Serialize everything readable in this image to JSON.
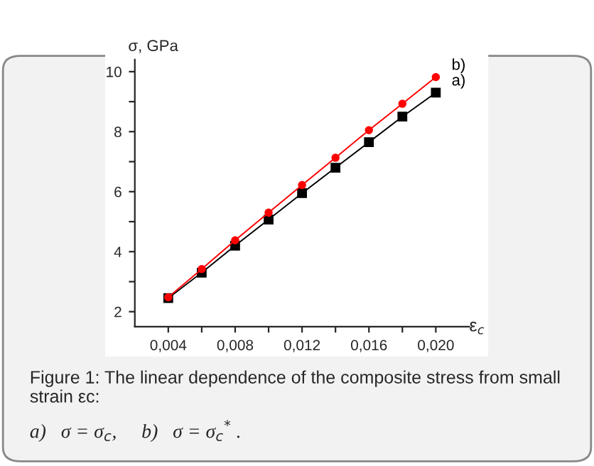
{
  "chart_data": {
    "type": "line",
    "xlabel": "ε$_{c}$",
    "ylabel": "σ, GPa",
    "x": [
      0.004,
      0.006,
      0.008,
      0.01,
      0.012,
      0.014,
      0.016,
      0.018,
      0.02
    ],
    "series": [
      {
        "name": "a)",
        "color": "#000000",
        "marker": "square",
        "values": [
          2.45,
          3.3,
          4.2,
          5.07,
          5.95,
          6.8,
          7.65,
          8.5,
          9.3
        ]
      },
      {
        "name": "b)",
        "color": "#ff0000",
        "marker": "circle",
        "values": [
          2.48,
          3.42,
          4.38,
          5.3,
          6.22,
          7.13,
          8.05,
          8.93,
          9.82
        ]
      }
    ],
    "xlim": [
      0.002,
      0.022
    ],
    "xticks": [
      {
        "value": 0.004,
        "label": "0,004"
      },
      {
        "value": 0.006,
        "label": null
      },
      {
        "value": 0.008,
        "label": "0,008"
      },
      {
        "value": 0.01,
        "label": null
      },
      {
        "value": 0.012,
        "label": "0,012"
      },
      {
        "value": 0.014,
        "label": null
      },
      {
        "value": 0.016,
        "label": "0,016"
      },
      {
        "value": 0.018,
        "label": null
      },
      {
        "value": 0.02,
        "label": "0,020"
      }
    ],
    "ylim": [
      1.5,
      10.4
    ],
    "yticks": [
      2,
      {
        "value": 3,
        "label": null
      },
      4,
      {
        "value": 5,
        "label": null
      },
      6,
      {
        "value": 7,
        "label": null
      },
      8,
      {
        "value": 9,
        "label": null
      },
      10
    ],
    "grid": false,
    "legend": false,
    "line_style": "solid",
    "annotations": [
      "Figure 1: The linear dependence of the composite stress from small strain εc:",
      "a)   σ = σ$_{c}$,     b)   σ = σ$_{c}$$^{*}$ ."
    ]
  }
}
